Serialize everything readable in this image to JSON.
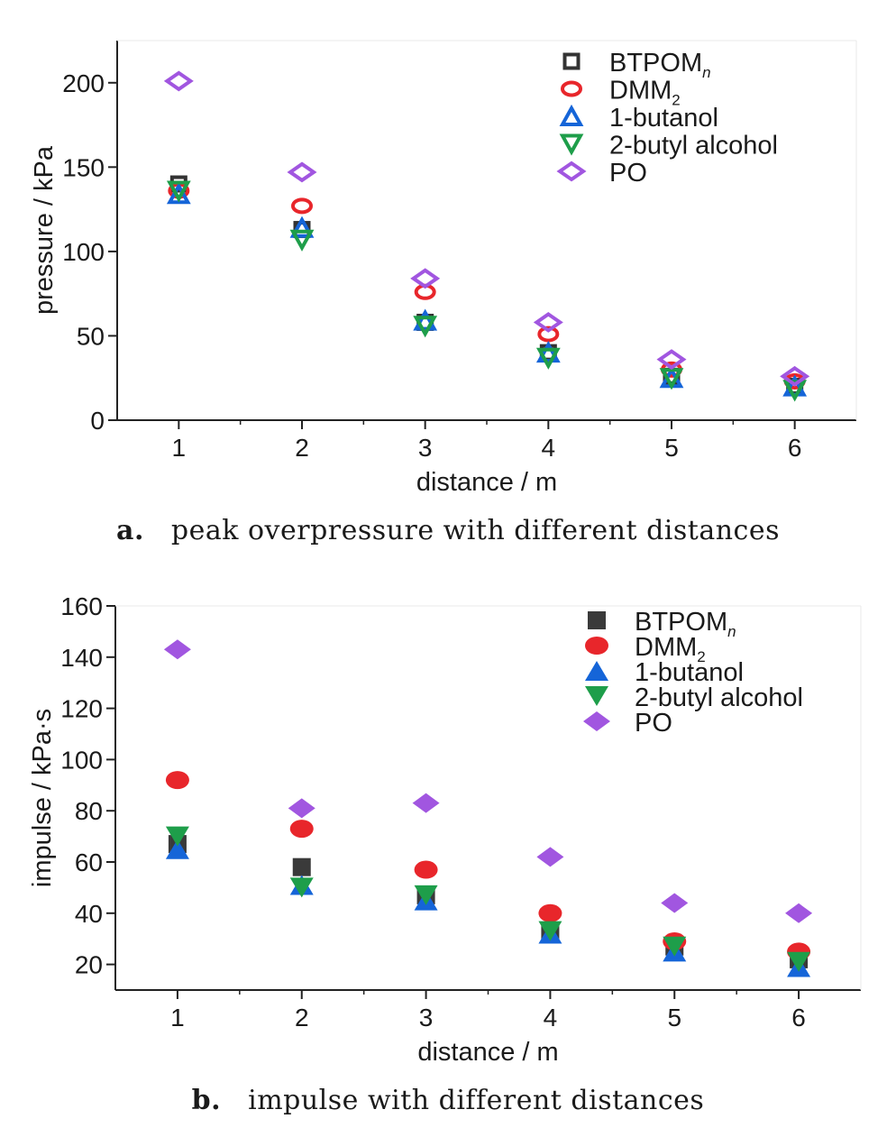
{
  "chart_data": [
    {
      "type": "scatter",
      "marker_style": "hollow",
      "xlabel": "distance / m",
      "ylabel": "pressure / kPa",
      "xlim": [
        0.5,
        6.5
      ],
      "ylim": [
        0,
        225
      ],
      "xticks": [
        "1",
        "2",
        "3",
        "4",
        "5",
        "6"
      ],
      "yticks": [
        "0",
        "50",
        "100",
        "150",
        "200"
      ],
      "x": [
        1,
        2,
        3,
        4,
        5,
        6
      ],
      "legend_position": "top-right",
      "series": [
        {
          "name": "BTPOM",
          "subscript": "n",
          "marker": "square",
          "color": "#333333",
          "values": [
            140,
            113,
            58,
            40,
            26,
            20
          ]
        },
        {
          "name": "DMM",
          "subscript": "2",
          "marker": "circle",
          "color": "#e8262b",
          "values": [
            136,
            127,
            76,
            51,
            30,
            23
          ]
        },
        {
          "name": "1-butanol",
          "subscript": "",
          "marker": "triangle-up",
          "color": "#1565d8",
          "values": [
            134,
            114,
            59,
            40,
            25,
            20
          ]
        },
        {
          "name": "2-butyl alcohol",
          "subscript": "",
          "marker": "triangle-down",
          "color": "#1e9e4a",
          "values": [
            136,
            107,
            56,
            37,
            25,
            18
          ]
        },
        {
          "name": "PO",
          "subscript": "",
          "marker": "diamond",
          "color": "#a156e0",
          "values": [
            201,
            147,
            84,
            58,
            36,
            26
          ]
        }
      ]
    },
    {
      "type": "scatter",
      "marker_style": "filled",
      "xlabel": "distance / m",
      "ylabel": "impulse / kPa·s",
      "xlim": [
        0.5,
        6.5
      ],
      "ylim": [
        10,
        160
      ],
      "xticks": [
        "1",
        "2",
        "3",
        "4",
        "5",
        "6"
      ],
      "yticks": [
        "20",
        "40",
        "60",
        "80",
        "100",
        "120",
        "140",
        "160"
      ],
      "x": [
        1,
        2,
        3,
        4,
        5,
        6
      ],
      "legend_position": "top-right",
      "series": [
        {
          "name": "BTPOM",
          "subscript": "n",
          "marker": "square",
          "color": "#3a3a3a",
          "values": [
            67,
            58,
            47,
            33,
            27,
            22
          ]
        },
        {
          "name": "DMM",
          "subscript": "2",
          "marker": "circle",
          "color": "#e8262b",
          "values": [
            92,
            73,
            57,
            40,
            29,
            25
          ]
        },
        {
          "name": "1-butanol",
          "subscript": "",
          "marker": "triangle-up",
          "color": "#1565d8",
          "values": [
            65,
            51,
            45,
            32,
            25,
            19
          ]
        },
        {
          "name": "2-butyl alcohol",
          "subscript": "",
          "marker": "triangle-down",
          "color": "#1e9e4a",
          "values": [
            70,
            50,
            47,
            33,
            27,
            21
          ]
        },
        {
          "name": "PO",
          "subscript": "",
          "marker": "diamond",
          "color": "#a156e0",
          "values": [
            143,
            81,
            83,
            62,
            44,
            40
          ]
        }
      ]
    }
  ],
  "captions": {
    "a": {
      "letter": "a.",
      "text": "peak overpressure with different distances"
    },
    "b": {
      "letter": "b.",
      "text": "impulse with different distances"
    }
  }
}
